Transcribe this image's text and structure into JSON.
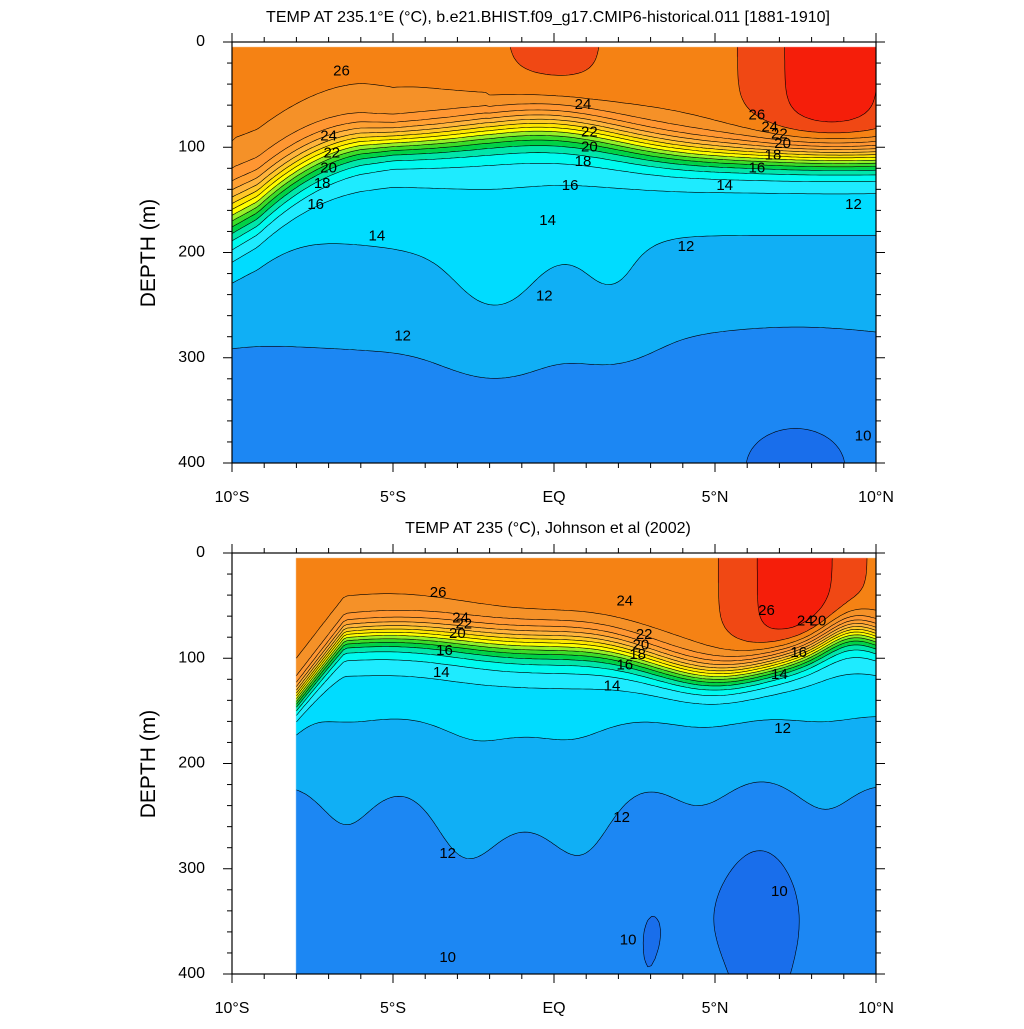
{
  "chart_data": [
    {
      "type": "contour",
      "title": "TEMP AT 235.1°E (°C), b.e21.BHIST.f09_g17.CMIP6-historical.011 [1881-1910]",
      "ylabel": "DEPTH (m)",
      "xlabel": "",
      "xlim": [
        -10,
        10
      ],
      "ylim": [
        0,
        400
      ],
      "y_inverted": true,
      "x_ticks": [
        -10,
        -5,
        0,
        5,
        10
      ],
      "x_tick_labels": [
        "10°S",
        "5°S",
        "EQ",
        "5°N",
        "10°N"
      ],
      "y_ticks": [
        0,
        100,
        200,
        300,
        400
      ],
      "y_tick_labels": [
        "0",
        "100",
        "200",
        "300",
        "400"
      ],
      "data_x_range": [
        -10,
        10
      ],
      "data_depth_range": [
        5,
        400
      ],
      "contour_interval": 1,
      "contour_labels": [
        {
          "text": "26",
          "x": -6.6,
          "depth": 28
        },
        {
          "text": "24",
          "x": 0.9,
          "depth": 60
        },
        {
          "text": "22",
          "x": 1.1,
          "depth": 86
        },
        {
          "text": "20",
          "x": 1.1,
          "depth": 100
        },
        {
          "text": "18",
          "x": 0.9,
          "depth": 114
        },
        {
          "text": "16",
          "x": 0.5,
          "depth": 137
        },
        {
          "text": "14",
          "x": -0.2,
          "depth": 170
        },
        {
          "text": "12",
          "x": -0.3,
          "depth": 242
        },
        {
          "text": "12",
          "x": -4.7,
          "depth": 280
        },
        {
          "text": "24",
          "x": -7.0,
          "depth": 90
        },
        {
          "text": "22",
          "x": -6.9,
          "depth": 106
        },
        {
          "text": "20",
          "x": -7.0,
          "depth": 120
        },
        {
          "text": "18",
          "x": -7.2,
          "depth": 135
        },
        {
          "text": "16",
          "x": -7.4,
          "depth": 155
        },
        {
          "text": "14",
          "x": -5.5,
          "depth": 185
        },
        {
          "text": "26",
          "x": 6.3,
          "depth": 70
        },
        {
          "text": "24",
          "x": 6.7,
          "depth": 81
        },
        {
          "text": "22",
          "x": 7.0,
          "depth": 88
        },
        {
          "text": "20",
          "x": 7.1,
          "depth": 97
        },
        {
          "text": "18",
          "x": 6.8,
          "depth": 108
        },
        {
          "text": "16",
          "x": 6.3,
          "depth": 120
        },
        {
          "text": "14",
          "x": 5.3,
          "depth": 137
        },
        {
          "text": "12",
          "x": 4.1,
          "depth": 195
        },
        {
          "text": "12",
          "x": 9.3,
          "depth": 155
        },
        {
          "text": "10",
          "x": 9.6,
          "depth": 375
        }
      ]
    },
    {
      "type": "contour",
      "title": "TEMP AT 235 (°C), Johnson et al (2002)",
      "ylabel": "DEPTH (m)",
      "xlabel": "",
      "xlim": [
        -10,
        10
      ],
      "ylim": [
        0,
        400
      ],
      "y_inverted": true,
      "x_ticks": [
        -10,
        -5,
        0,
        5,
        10
      ],
      "x_tick_labels": [
        "10°S",
        "5°S",
        "EQ",
        "5°N",
        "10°N"
      ],
      "y_ticks": [
        0,
        100,
        200,
        300,
        400
      ],
      "y_tick_labels": [
        "0",
        "100",
        "200",
        "300",
        "400"
      ],
      "data_x_range": [
        -8,
        10
      ],
      "data_depth_range": [
        5,
        400
      ],
      "contour_interval": 1,
      "contour_labels": [
        {
          "text": "26",
          "x": -3.6,
          "depth": 38
        },
        {
          "text": "24",
          "x": -2.9,
          "depth": 62
        },
        {
          "text": "22",
          "x": -2.8,
          "depth": 68
        },
        {
          "text": "20",
          "x": -3.0,
          "depth": 77
        },
        {
          "text": "16",
          "x": -3.4,
          "depth": 93
        },
        {
          "text": "14",
          "x": -3.5,
          "depth": 114
        },
        {
          "text": "24",
          "x": 2.2,
          "depth": 46
        },
        {
          "text": "22",
          "x": 2.8,
          "depth": 78
        },
        {
          "text": "20",
          "x": 2.7,
          "depth": 88
        },
        {
          "text": "18",
          "x": 2.6,
          "depth": 97
        },
        {
          "text": "16",
          "x": 2.2,
          "depth": 107
        },
        {
          "text": "14",
          "x": 1.8,
          "depth": 127
        },
        {
          "text": "26",
          "x": 6.6,
          "depth": 55
        },
        {
          "text": "24",
          "x": 7.8,
          "depth": 65
        },
        {
          "text": "20",
          "x": 8.2,
          "depth": 65
        },
        {
          "text": "16",
          "x": 7.6,
          "depth": 95
        },
        {
          "text": "14",
          "x": 7.0,
          "depth": 116
        },
        {
          "text": "12",
          "x": 7.1,
          "depth": 167
        },
        {
          "text": "12",
          "x": 2.1,
          "depth": 252
        },
        {
          "text": "12",
          "x": -3.3,
          "depth": 286
        },
        {
          "text": "10",
          "x": 7.0,
          "depth": 322
        },
        {
          "text": "10",
          "x": 2.3,
          "depth": 368
        },
        {
          "text": "10",
          "x": -3.3,
          "depth": 385
        }
      ]
    }
  ]
}
